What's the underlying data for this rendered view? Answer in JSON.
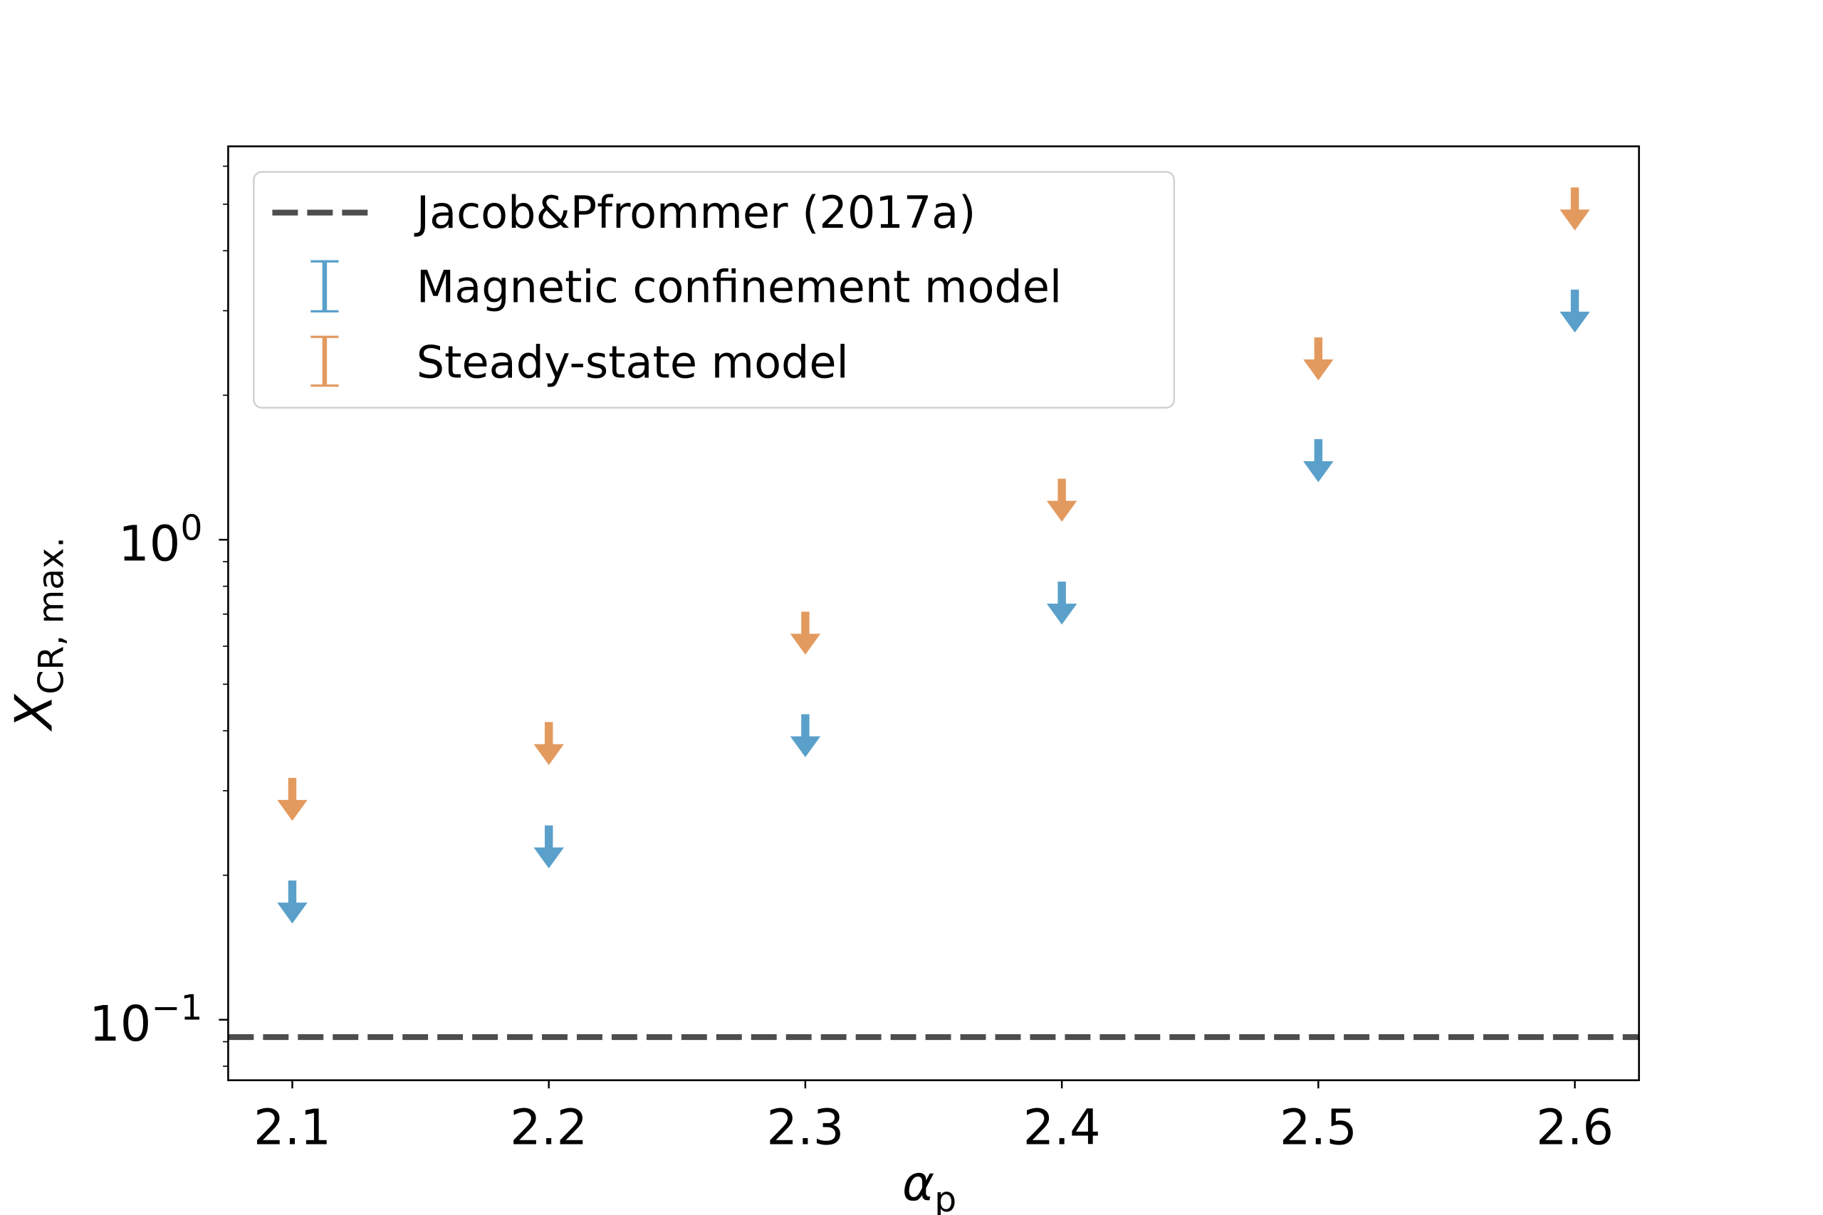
{
  "chart_data": {
    "type": "scatter",
    "title": "",
    "xlabel": "α",
    "xlabel_sub": "p",
    "ylabel": "X",
    "ylabel_sub": "CR, max.",
    "yscale": "log",
    "xlim": [
      2.075,
      2.625
    ],
    "ylim": [
      0.0748,
      6.6
    ],
    "x_ticks": [
      "2.1",
      "2.2",
      "2.3",
      "2.4",
      "2.5",
      "2.6"
    ],
    "x_tick_values": [
      2.1,
      2.2,
      2.3,
      2.4,
      2.5,
      2.6
    ],
    "y_ticks": [
      {
        "base": "10",
        "exp": "0",
        "value": 1
      },
      {
        "base": "10",
        "exp": "−1",
        "value": 0.1
      }
    ],
    "grid": false,
    "legend_position": "upper-left",
    "reference_line": {
      "name": "Jacob&Pfrommer (2017a)",
      "value": 0.092,
      "style": "dashed",
      "color": "#4d4d4d"
    },
    "series": [
      {
        "name": "Magnetic confinement model",
        "color": "#5aa0cb",
        "marker": "upper-limit-arrow",
        "x": [
          2.1,
          2.2,
          2.3,
          2.4,
          2.5,
          2.6
        ],
        "values": [
          0.195,
          0.254,
          0.433,
          0.818,
          1.62,
          3.32
        ]
      },
      {
        "name": "Steady-state model",
        "color": "#e39a5f",
        "marker": "upper-limit-arrow",
        "x": [
          2.1,
          2.2,
          2.3,
          2.4,
          2.5,
          2.6
        ],
        "values": [
          0.319,
          0.417,
          0.708,
          1.34,
          2.64,
          5.42
        ]
      }
    ]
  }
}
